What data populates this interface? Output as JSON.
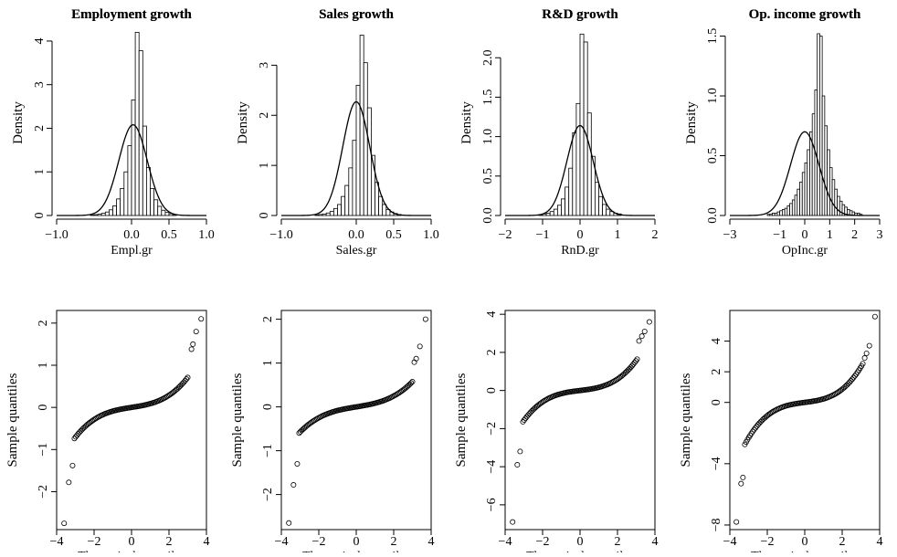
{
  "chart_data": [
    {
      "type": "histogram",
      "title": "Employment growth",
      "xlabel": "Empl.gr",
      "ylabel": "Density",
      "xlim": [
        -1.0,
        1.0
      ],
      "ylim": [
        0,
        4.25
      ],
      "xticks": [
        -1.0,
        0.0,
        0.5,
        1.0
      ],
      "xtick_labels": [
        "−1.0",
        "0.0",
        "0.5",
        "1.0"
      ],
      "yticks": [
        0,
        1,
        2,
        3,
        4
      ],
      "ytick_labels": [
        "0",
        "1",
        "2",
        "3",
        "4"
      ],
      "bins": {
        "start": -0.55,
        "width": 0.05,
        "density": [
          0.01,
          0.02,
          0.03,
          0.05,
          0.08,
          0.13,
          0.22,
          0.38,
          0.62,
          1.0,
          1.6,
          2.65,
          4.2,
          3.78,
          2.05,
          1.1,
          0.62,
          0.36,
          0.21,
          0.12,
          0.07,
          0.04,
          0.02
        ]
      },
      "normal_curve": {
        "mean": 0.02,
        "sd": 0.19,
        "peak": 2.08
      }
    },
    {
      "type": "histogram",
      "title": "Sales growth",
      "xlabel": "Sales.gr",
      "ylabel": "Density",
      "xlim": [
        -1.0,
        1.0
      ],
      "ylim": [
        0,
        3.7
      ],
      "xticks": [
        -1.0,
        0.0,
        0.5,
        1.0
      ],
      "xtick_labels": [
        "−1.0",
        "0.0",
        "0.5",
        "1.0"
      ],
      "yticks": [
        0,
        1,
        2,
        3
      ],
      "ytick_labels": [
        "0",
        "1",
        "2",
        "3"
      ],
      "bins": {
        "start": -0.55,
        "width": 0.05,
        "density": [
          0.01,
          0.02,
          0.03,
          0.05,
          0.08,
          0.14,
          0.22,
          0.38,
          0.6,
          0.95,
          1.5,
          2.6,
          3.6,
          3.05,
          2.15,
          1.2,
          0.66,
          0.38,
          0.22,
          0.12,
          0.07,
          0.04,
          0.02
        ]
      },
      "normal_curve": {
        "mean": 0.0,
        "sd": 0.18,
        "peak": 2.27
      }
    },
    {
      "type": "histogram",
      "title": "R&D growth",
      "xlabel": "RnD.gr",
      "ylabel": "Density",
      "xlim": [
        -2.0,
        2.0
      ],
      "ylim": [
        0,
        2.35
      ],
      "xticks": [
        -2,
        -1,
        0,
        1,
        2
      ],
      "xtick_labels": [
        "−2",
        "−1",
        "0",
        "1",
        "2"
      ],
      "yticks": [
        0.0,
        0.5,
        1.0,
        1.5,
        2.0
      ],
      "ytick_labels": [
        "0.0",
        "0.5",
        "1.0",
        "1.5",
        "2.0"
      ],
      "bins": {
        "start": -1.1,
        "width": 0.1,
        "density": [
          0.01,
          0.02,
          0.03,
          0.05,
          0.08,
          0.13,
          0.21,
          0.36,
          0.6,
          1.05,
          1.42,
          2.3,
          2.2,
          1.3,
          0.75,
          0.42,
          0.24,
          0.14,
          0.08,
          0.05,
          0.03,
          0.02
        ]
      },
      "normal_curve": {
        "mean": 0.0,
        "sd": 0.35,
        "peak": 1.14
      }
    },
    {
      "type": "histogram",
      "title": "Op. income growth",
      "xlabel": "OpInc.gr",
      "ylabel": "Density",
      "xlim": [
        -3.0,
        3.0
      ],
      "ylim": [
        0,
        1.55
      ],
      "xticks": [
        -3,
        -1,
        0,
        1,
        2,
        3
      ],
      "xtick_labels": [
        "−3",
        "−1",
        "0",
        "1",
        "2",
        "3"
      ],
      "yticks": [
        0.0,
        0.5,
        1.0,
        1.5
      ],
      "ytick_labels": [
        "0.0",
        "0.5",
        "1.0",
        "1.5"
      ],
      "bins": {
        "start": -1.5,
        "width": 0.1,
        "density": [
          0.01,
          0.01,
          0.02,
          0.02,
          0.03,
          0.04,
          0.05,
          0.06,
          0.08,
          0.1,
          0.13,
          0.17,
          0.22,
          0.28,
          0.36,
          0.44,
          0.55,
          0.7,
          0.85,
          1.05,
          1.52,
          1.5,
          1.0,
          0.75,
          0.55,
          0.4,
          0.3,
          0.22,
          0.16,
          0.12,
          0.09,
          0.07,
          0.05,
          0.04,
          0.03,
          0.02,
          0.02,
          0.01
        ]
      },
      "normal_curve": {
        "mean": 0.0,
        "sd": 0.57,
        "peak": 0.7
      }
    },
    {
      "type": "scatter",
      "title": "Employment growth",
      "xlabel": "Theoretical quantiles",
      "ylabel": "Sample quantiles",
      "xlim": [
        -4,
        4
      ],
      "ylim": [
        -2.9,
        2.3
      ],
      "xticks": [
        -4,
        -2,
        0,
        2,
        4
      ],
      "xtick_labels": [
        "−4",
        "−2",
        "0",
        "2",
        "4"
      ],
      "yticks": [
        -2,
        -1,
        0,
        1,
        2
      ],
      "ytick_labels": [
        "−2",
        "−1",
        "0",
        "1",
        "2"
      ],
      "qq_shape": {
        "a": 0.0185,
        "b": 0.07,
        "x_min": -3.05,
        "x_max": 3.0
      },
      "outliers": [
        [
          -3.6,
          -2.75
        ],
        [
          -3.35,
          -1.78
        ],
        [
          -3.15,
          -1.38
        ],
        [
          3.2,
          1.38
        ],
        [
          3.28,
          1.5
        ],
        [
          3.45,
          1.8
        ],
        [
          3.72,
          2.1
        ]
      ]
    },
    {
      "type": "scatter",
      "title": "Sales growth",
      "xlabel": "Theoretical quantiles",
      "ylabel": "Sample quantiles",
      "xlim": [
        -4,
        4
      ],
      "ylim": [
        -2.8,
        2.2
      ],
      "xticks": [
        -4,
        -2,
        0,
        2,
        4
      ],
      "xtick_labels": [
        "−4",
        "−2",
        "0",
        "2",
        "4"
      ],
      "yticks": [
        -2,
        -1,
        0,
        1,
        2
      ],
      "ytick_labels": [
        "−2",
        "−1",
        "0",
        "1",
        "2"
      ],
      "qq_shape": {
        "a": 0.0135,
        "b": 0.07,
        "x_min": -3.05,
        "x_max": 3.0
      },
      "outliers": [
        [
          -3.6,
          -2.65
        ],
        [
          -3.35,
          -1.78
        ],
        [
          -3.15,
          -1.3
        ],
        [
          3.1,
          1.02
        ],
        [
          3.2,
          1.1
        ],
        [
          3.4,
          1.38
        ],
        [
          3.7,
          2.0
        ]
      ]
    },
    {
      "type": "scatter",
      "title": "R&D growth",
      "xlabel": "Theoretical quantiles",
      "ylabel": "Sample quantiles",
      "xlim": [
        -4,
        4
      ],
      "ylim": [
        -7.3,
        4.2
      ],
      "xticks": [
        -4,
        -2,
        0,
        2,
        4
      ],
      "xtick_labels": [
        "−4",
        "−2",
        "0",
        "2",
        "4"
      ],
      "yticks": [
        -6,
        -4,
        -2,
        0,
        2,
        4
      ],
      "ytick_labels": [
        "−6",
        "−4",
        "−2",
        "0",
        "2",
        "4"
      ],
      "qq_shape": {
        "a": 0.045,
        "b": 0.12,
        "x_min": -3.05,
        "x_max": 3.05
      },
      "outliers": [
        [
          -3.6,
          -6.9
        ],
        [
          -3.35,
          -3.9
        ],
        [
          -3.2,
          -3.2
        ],
        [
          3.15,
          2.6
        ],
        [
          3.3,
          2.85
        ],
        [
          3.45,
          3.1
        ],
        [
          3.7,
          3.6
        ]
      ]
    },
    {
      "type": "scatter",
      "title": "Op. income growth",
      "xlabel": "Theoretical quantiles",
      "ylabel": "Sample quantiles",
      "xlim": [
        -4,
        4
      ],
      "ylim": [
        -8.3,
        6.0
      ],
      "xticks": [
        -4,
        -2,
        0,
        2,
        4
      ],
      "xtick_labels": [
        "−4",
        "−2",
        "0",
        "2",
        "4"
      ],
      "yticks": [
        -8,
        -4,
        0,
        2,
        4
      ],
      "ytick_labels": [
        "−8",
        "−4",
        "0",
        "2",
        "4"
      ],
      "qq_shape": {
        "a": 0.068,
        "b": 0.16,
        "x_min": -3.2,
        "x_max": 3.1
      },
      "outliers": [
        [
          -3.65,
          -7.8
        ],
        [
          -3.4,
          -5.3
        ],
        [
          -3.3,
          -4.9
        ],
        [
          3.2,
          2.9
        ],
        [
          3.3,
          3.2
        ],
        [
          3.45,
          3.7
        ],
        [
          3.75,
          5.6
        ]
      ]
    }
  ]
}
